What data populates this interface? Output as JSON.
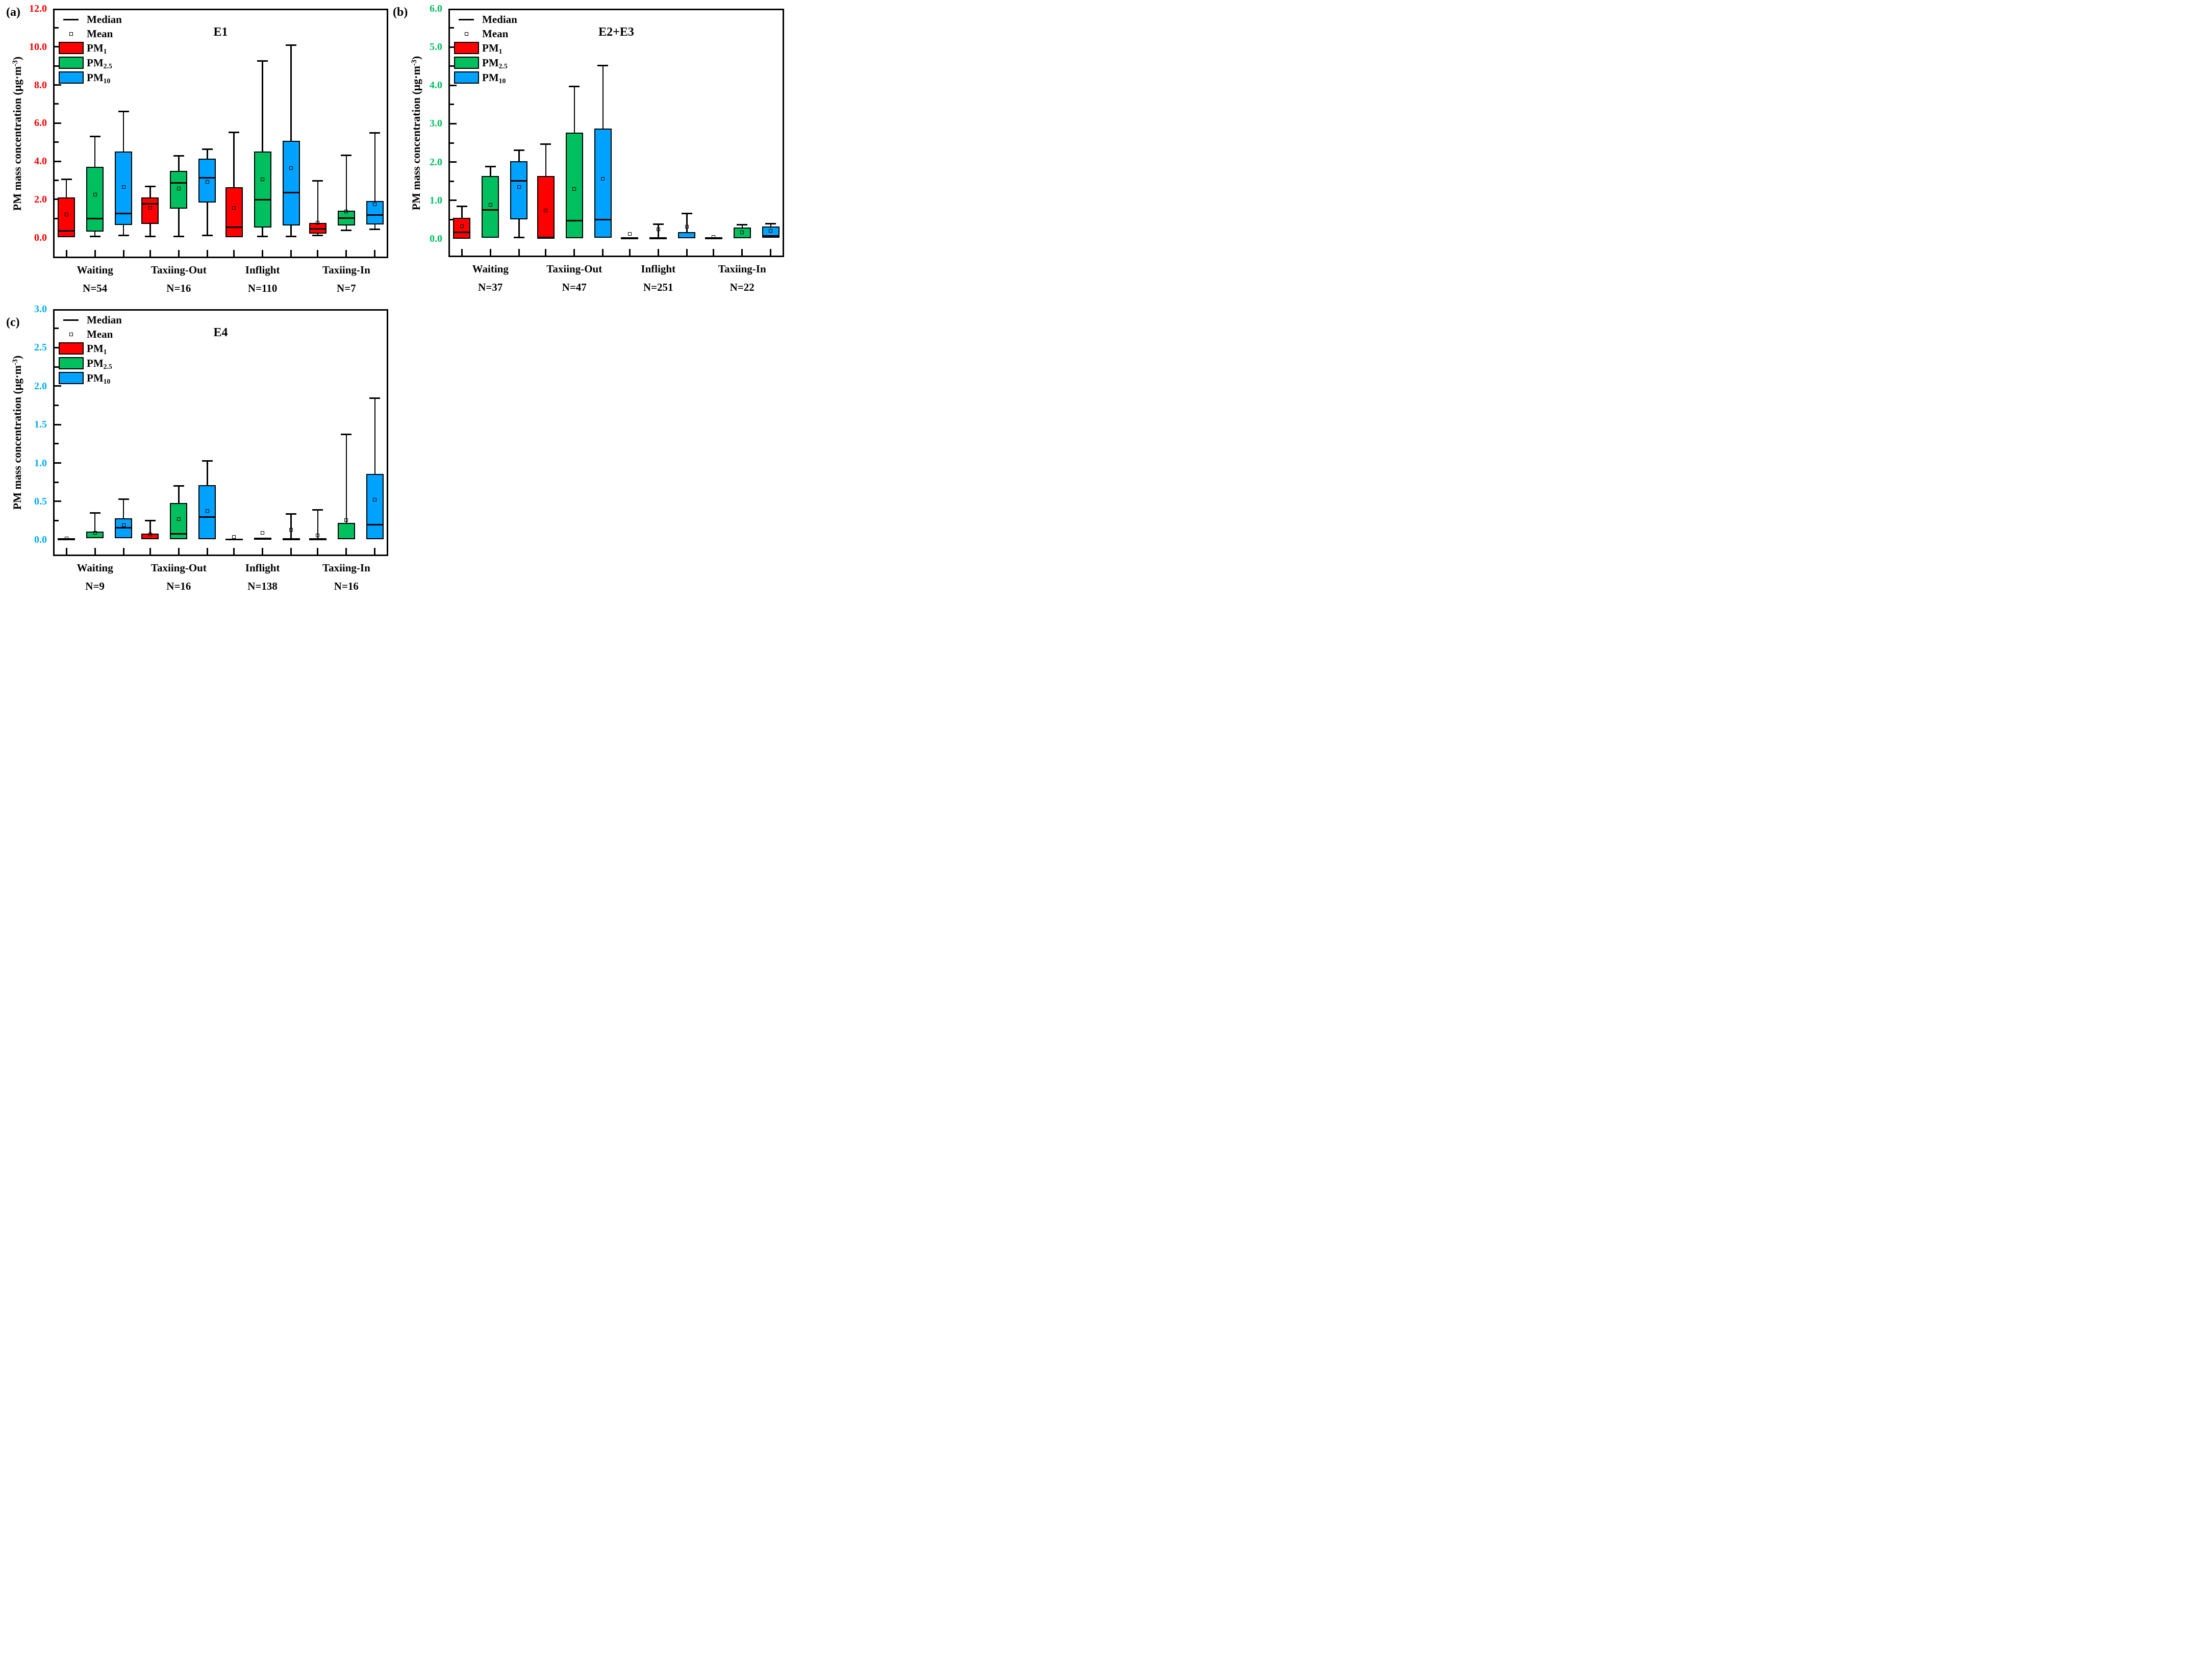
{
  "figure": {
    "ylabel": {
      "pre": "PM mass concentration (μg·m",
      "sup": "-3",
      "post": ")"
    },
    "legend": {
      "median_label": "Median",
      "mean_label": "Mean",
      "series": [
        {
          "key": "pm1",
          "base": "PM",
          "sub": "1",
          "color": "#FF0000"
        },
        {
          "key": "pm25",
          "base": "PM",
          "sub": "2.5",
          "color": "#00BF5F"
        },
        {
          "key": "pm10",
          "base": "PM",
          "sub": "10",
          "color": "#00A2FF"
        }
      ]
    },
    "colors": {
      "pm1": "#FF0000",
      "pm25": "#00BF5F",
      "pm10": "#00A2FF",
      "axis": "#000000"
    }
  },
  "chart_data": [
    {
      "id": "a",
      "type": "box",
      "letter": "(a)",
      "title": "E1",
      "tick_label_color": "#FF0000",
      "ylim": [
        0,
        12
      ],
      "y_major_step": 2.0,
      "y_minor_step": 1.0,
      "y_tick_labels": [
        "0.0",
        "2.0",
        "4.0",
        "6.0",
        "8.0",
        "10.0",
        "12.0"
      ],
      "series": [
        "PM1",
        "PM2.5",
        "PM10"
      ],
      "groups": [
        {
          "label": "Waiting",
          "n": "N=54",
          "boxes": [
            {
              "series": "pm1",
              "whisker_low": 0.0,
              "q1": 0.02,
              "median": 0.35,
              "q3": 2.1,
              "whisker_high": 3.05,
              "mean": 1.2
            },
            {
              "series": "pm25",
              "whisker_low": 0.05,
              "q1": 0.3,
              "median": 1.0,
              "q3": 3.7,
              "whisker_high": 5.3,
              "mean": 2.25
            },
            {
              "series": "pm10",
              "whisker_low": 0.1,
              "q1": 0.65,
              "median": 1.25,
              "q3": 4.5,
              "whisker_high": 6.6,
              "mean": 2.65
            }
          ]
        },
        {
          "label": "Taxiing-Out",
          "n": "N=16",
          "boxes": [
            {
              "series": "pm1",
              "whisker_low": 0.05,
              "q1": 0.7,
              "median": 1.77,
              "q3": 2.1,
              "whisker_high": 2.68,
              "mean": 1.55
            },
            {
              "series": "pm25",
              "whisker_low": 0.05,
              "q1": 1.51,
              "median": 2.86,
              "q3": 3.5,
              "whisker_high": 4.27,
              "mean": 2.56
            },
            {
              "series": "pm10",
              "whisker_low": 0.1,
              "q1": 1.84,
              "median": 3.14,
              "q3": 4.14,
              "whisker_high": 4.62,
              "mean": 2.93
            }
          ]
        },
        {
          "label": "Inflight",
          "n": "N=110",
          "boxes": [
            {
              "series": "pm1",
              "whisker_low": 0.0,
              "q1": 0.02,
              "median": 0.55,
              "q3": 2.64,
              "whisker_high": 5.51,
              "mean": 1.55
            },
            {
              "series": "pm25",
              "whisker_low": 0.05,
              "q1": 0.52,
              "median": 1.97,
              "q3": 4.52,
              "whisker_high": 9.25,
              "mean": 3.05
            },
            {
              "series": "pm10",
              "whisker_low": 0.05,
              "q1": 0.63,
              "median": 2.37,
              "q3": 5.08,
              "whisker_high": 10.1,
              "mean": 3.65
            }
          ]
        },
        {
          "label": "Taxiing-In",
          "n": "N=7",
          "boxes": [
            {
              "series": "pm1",
              "whisker_low": 0.12,
              "q1": 0.21,
              "median": 0.45,
              "q3": 0.77,
              "whisker_high": 2.96,
              "mean": 0.79
            },
            {
              "series": "pm25",
              "whisker_low": 0.37,
              "q1": 0.63,
              "median": 1.03,
              "q3": 1.41,
              "whisker_high": 4.32,
              "mean": 1.38
            },
            {
              "series": "pm10",
              "whisker_low": 0.42,
              "q1": 0.69,
              "median": 1.17,
              "q3": 1.92,
              "whisker_high": 5.5,
              "mean": 1.74
            }
          ]
        }
      ]
    },
    {
      "id": "b",
      "type": "box",
      "letter": "(b)",
      "title": "E2+E3",
      "tick_label_color": "#00BF5F",
      "ylim": [
        0,
        6
      ],
      "y_major_step": 1.0,
      "y_minor_step": 0.5,
      "y_tick_labels": [
        "0.0",
        "1.0",
        "2.0",
        "3.0",
        "4.0",
        "5.0",
        "6.0"
      ],
      "series": [
        "PM1",
        "PM2.5",
        "PM10"
      ],
      "groups": [
        {
          "label": "Waiting",
          "n": "N=37",
          "boxes": [
            {
              "series": "pm1",
              "whisker_low": 0.0,
              "q1": 0.0,
              "median": 0.16,
              "q3": 0.55,
              "whisker_high": 0.85,
              "mean": 0.32
            },
            {
              "series": "pm25",
              "whisker_low": 0.0,
              "q1": 0.03,
              "median": 0.75,
              "q3": 1.63,
              "whisker_high": 1.88,
              "mean": 0.89
            },
            {
              "series": "pm10",
              "whisker_low": 0.03,
              "q1": 0.51,
              "median": 1.51,
              "q3": 2.02,
              "whisker_high": 2.31,
              "mean": 1.35
            }
          ]
        },
        {
          "label": "Taxiing-Out",
          "n": "N=47",
          "boxes": [
            {
              "series": "pm1",
              "whisker_low": 0.0,
              "q1": 0.0,
              "median": 0.03,
              "q3": 1.64,
              "whisker_high": 2.47,
              "mean": 0.74
            },
            {
              "series": "pm25",
              "whisker_low": 0.0,
              "q1": 0.01,
              "median": 0.47,
              "q3": 2.77,
              "whisker_high": 3.97,
              "mean": 1.3
            },
            {
              "series": "pm10",
              "whisker_low": 0.0,
              "q1": 0.03,
              "median": 0.5,
              "q3": 2.87,
              "whisker_high": 4.52,
              "mean": 1.56
            }
          ]
        },
        {
          "label": "Inflight",
          "n": "N=251",
          "boxes": [
            {
              "series": "pm1",
              "whisker_low": 0.0,
              "q1": 0.0,
              "median": 0.01,
              "q3": 0.02,
              "whisker_high": 0.02,
              "mean": 0.13
            },
            {
              "series": "pm25",
              "whisker_low": 0.0,
              "q1": 0.0,
              "median": 0.01,
              "q3": 0.03,
              "whisker_high": 0.38,
              "mean": 0.24
            },
            {
              "series": "pm10",
              "whisker_low": 0.0,
              "q1": 0.01,
              "median": 0.02,
              "q3": 0.17,
              "whisker_high": 0.66,
              "mean": 0.31
            }
          ]
        },
        {
          "label": "Taxiing-In",
          "n": "N=22",
          "boxes": [
            {
              "series": "pm1",
              "whisker_low": 0.0,
              "q1": 0.0,
              "median": 0.01,
              "q3": 0.02,
              "whisker_high": 0.02,
              "mean": 0.05
            },
            {
              "series": "pm25",
              "whisker_low": 0.0,
              "q1": 0.01,
              "median": 0.03,
              "q3": 0.29,
              "whisker_high": 0.37,
              "mean": 0.17
            },
            {
              "series": "pm10",
              "whisker_low": 0.01,
              "q1": 0.02,
              "median": 0.07,
              "q3": 0.32,
              "whisker_high": 0.39,
              "mean": 0.2
            }
          ]
        }
      ]
    },
    {
      "id": "c",
      "type": "box",
      "letter": "(c)",
      "title": "E4",
      "tick_label_color": "#00AEEF",
      "ylim": [
        0,
        3
      ],
      "y_major_step": 0.5,
      "y_minor_step": 0.25,
      "y_tick_labels": [
        "0.0",
        "0.5",
        "1.0",
        "1.5",
        "2.0",
        "2.5",
        "3.0"
      ],
      "series": [
        "PM1",
        "PM2.5",
        "PM10"
      ],
      "groups": [
        {
          "label": "Waiting",
          "n": "N=9",
          "boxes": [
            {
              "series": "pm1",
              "whisker_low": 0.0,
              "q1": 0.0,
              "median": 0.01,
              "q3": 0.01,
              "whisker_high": 0.01,
              "mean": 0.02
            },
            {
              "series": "pm25",
              "whisker_low": 0.01,
              "q1": 0.02,
              "median": 0.03,
              "q3": 0.11,
              "whisker_high": 0.35,
              "mean": 0.09
            },
            {
              "series": "pm10",
              "whisker_low": 0.01,
              "q1": 0.02,
              "median": 0.16,
              "q3": 0.28,
              "whisker_high": 0.53,
              "mean": 0.19
            }
          ]
        },
        {
          "label": "Taxiing-Out",
          "n": "N=16",
          "boxes": [
            {
              "series": "pm1",
              "whisker_low": 0.0,
              "q1": 0.01,
              "median": 0.02,
              "q3": 0.08,
              "whisker_high": 0.25,
              "mean": 0.07
            },
            {
              "series": "pm25",
              "whisker_low": 0.01,
              "q1": 0.01,
              "median": 0.08,
              "q3": 0.48,
              "whisker_high": 0.7,
              "mean": 0.27
            },
            {
              "series": "pm10",
              "whisker_low": 0.01,
              "q1": 0.01,
              "median": 0.3,
              "q3": 0.71,
              "whisker_high": 1.03,
              "mean": 0.38
            }
          ]
        },
        {
          "label": "Inflight",
          "n": "N=138",
          "boxes": [
            {
              "series": "pm1",
              "whisker_low": 0.0,
              "q1": 0.0,
              "median": 0.005,
              "q3": 0.01,
              "whisker_high": 0.01,
              "mean": 0.04
            },
            {
              "series": "pm25",
              "whisker_low": 0.0,
              "q1": 0.0,
              "median": 0.02,
              "q3": 0.03,
              "whisker_high": 0.03,
              "mean": 0.09
            },
            {
              "series": "pm10",
              "whisker_low": 0.0,
              "q1": 0.0,
              "median": 0.01,
              "q3": 0.02,
              "whisker_high": 0.34,
              "mean": 0.13
            }
          ]
        },
        {
          "label": "Taxiing-In",
          "n": "N=16",
          "boxes": [
            {
              "series": "pm1",
              "whisker_low": 0.0,
              "q1": 0.0,
              "median": 0.01,
              "q3": 0.02,
              "whisker_high": 0.39,
              "mean": 0.06
            },
            {
              "series": "pm25",
              "whisker_low": 0.0,
              "q1": 0.01,
              "median": 0.02,
              "q3": 0.22,
              "whisker_high": 1.37,
              "mean": 0.26
            },
            {
              "series": "pm10",
              "whisker_low": 0.01,
              "q1": 0.01,
              "median": 0.2,
              "q3": 0.86,
              "whisker_high": 1.84,
              "mean": 0.52
            }
          ]
        }
      ]
    }
  ]
}
